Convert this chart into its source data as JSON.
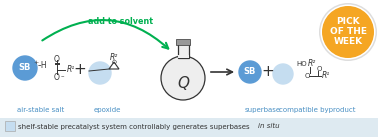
{
  "bg_color": "#ffffff",
  "blue_color": "#5b9bd5",
  "light_blue_circle": "#c5ddf0",
  "green_color": "#00b050",
  "gold_color": "#f5a623",
  "text_color_blue": "#4a90c4",
  "text_color_dark": "#333333",
  "caption": "shelf-stable precatalyst system controllably generates superbases ",
  "caption_italic": "in situ",
  "label_air_stable": "air-stable salt",
  "label_epoxide": "epoxide",
  "label_superbase": "superbase",
  "label_byproduct": "compatible byproduct",
  "add_to_solvent": "add to solvent",
  "pick_of_week": [
    "PICK",
    "OF THE",
    "WEEK"
  ],
  "figsize": [
    3.78,
    1.37
  ],
  "dpi": 100
}
